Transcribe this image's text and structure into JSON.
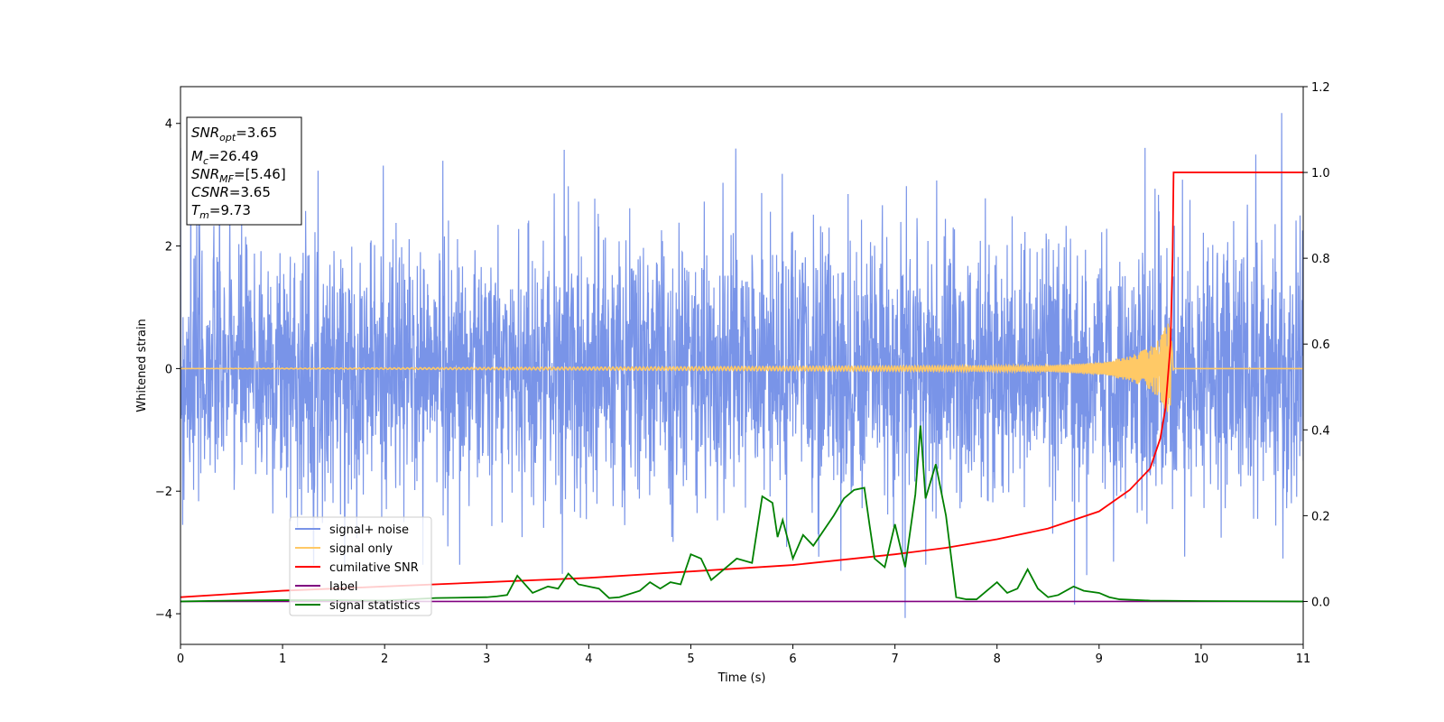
{
  "chart_data": {
    "type": "line",
    "title": "",
    "xlabel": "Time (s)",
    "ylabel": "Whitened strain",
    "xlim": [
      0,
      11
    ],
    "ylim": [
      -4.5,
      4.6
    ],
    "y2lim": [
      -0.1,
      1.2
    ],
    "x_ticks": [
      "0",
      "1",
      "2",
      "3",
      "4",
      "5",
      "6",
      "7",
      "8",
      "9",
      "10",
      "11"
    ],
    "y_ticks": [
      "−4",
      "−2",
      "0",
      "2",
      "4"
    ],
    "y2_ticks": [
      "0.0",
      "0.2",
      "0.4",
      "0.6",
      "0.8",
      "1.0",
      "1.2"
    ],
    "grid": false,
    "legend_position": "lower-left",
    "annotation": {
      "lines": [
        {
          "sym": "SNR",
          "sub": "opt",
          "text": "=3.65"
        },
        {
          "sym": "M",
          "sub": "c",
          "text": "=26.49"
        },
        {
          "sym": "SNR",
          "sub": "MF",
          "text": "=[5.46]"
        },
        {
          "sym": "CSNR",
          "sub": "",
          "text": "=3.65"
        },
        {
          "sym": "T",
          "sub": "m",
          "text": "=9.73"
        }
      ]
    },
    "series": [
      {
        "name": "signal+ noise",
        "axis": "left",
        "color": "#7994e8",
        "style": "noise band approximately ±2.5 with spikes up to about ±4",
        "peaks_high": [
          [
            0.1,
            4.1
          ],
          [
            2.57,
            3.39
          ],
          [
            3.76,
            3.57
          ],
          [
            5.44,
            3.59
          ],
          [
            9.45,
            3.6
          ],
          [
            10.79,
            4.17
          ]
        ],
        "peaks_low": [
          [
            0.02,
            -2.55
          ],
          [
            2.62,
            -2.9
          ],
          [
            3.74,
            -3.35
          ],
          [
            6.47,
            -3.3
          ],
          [
            7.1,
            -4.07
          ],
          [
            8.76,
            -3.85
          ],
          [
            8.88,
            -3.37
          ],
          [
            10.8,
            -3.1
          ]
        ]
      },
      {
        "name": "signal only",
        "axis": "left",
        "color": "#ffc966",
        "style": "chirp, amplitude grows toward merger at t=9.73",
        "merger_time": 9.73,
        "points": [
          [
            0,
            0
          ],
          [
            8.5,
            0.05
          ],
          [
            9.0,
            0.1
          ],
          [
            9.3,
            0.2
          ],
          [
            9.5,
            0.35
          ],
          [
            9.6,
            0.5
          ],
          [
            9.68,
            0.8
          ],
          [
            9.71,
            0.45
          ],
          [
            9.73,
            0
          ]
        ]
      },
      {
        "name": "cumilative SNR",
        "axis": "right",
        "color": "#ff0000",
        "points": [
          [
            0,
            0.01
          ],
          [
            1,
            0.025
          ],
          [
            2,
            0.035
          ],
          [
            3,
            0.045
          ],
          [
            4,
            0.055
          ],
          [
            5,
            0.07
          ],
          [
            6,
            0.085
          ],
          [
            7,
            0.11
          ],
          [
            7.5,
            0.125
          ],
          [
            8,
            0.145
          ],
          [
            8.5,
            0.17
          ],
          [
            9,
            0.21
          ],
          [
            9.3,
            0.26
          ],
          [
            9.5,
            0.31
          ],
          [
            9.6,
            0.38
          ],
          [
            9.65,
            0.45
          ],
          [
            9.7,
            0.6
          ],
          [
            9.72,
            0.8
          ],
          [
            9.73,
            1.0
          ],
          [
            11,
            1.0
          ]
        ]
      },
      {
        "name": "label",
        "axis": "right",
        "color": "#800080",
        "points": [
          [
            0,
            0
          ],
          [
            11,
            0
          ]
        ]
      },
      {
        "name": "signal statistics",
        "axis": "right",
        "color": "#008000",
        "points": [
          [
            0,
            0.0
          ],
          [
            0.5,
            0.002
          ],
          [
            1,
            0.003
          ],
          [
            1.5,
            0.003
          ],
          [
            2,
            0.002
          ],
          [
            2.5,
            0.008
          ],
          [
            3,
            0.01
          ],
          [
            3.1,
            0.012
          ],
          [
            3.2,
            0.015
          ],
          [
            3.3,
            0.06
          ],
          [
            3.45,
            0.02
          ],
          [
            3.6,
            0.035
          ],
          [
            3.7,
            0.03
          ],
          [
            3.8,
            0.065
          ],
          [
            3.9,
            0.04
          ],
          [
            4,
            0.035
          ],
          [
            4.1,
            0.03
          ],
          [
            4.2,
            0.008
          ],
          [
            4.3,
            0.01
          ],
          [
            4.5,
            0.025
          ],
          [
            4.6,
            0.045
          ],
          [
            4.7,
            0.03
          ],
          [
            4.8,
            0.045
          ],
          [
            4.9,
            0.04
          ],
          [
            5,
            0.11
          ],
          [
            5.1,
            0.1
          ],
          [
            5.2,
            0.05
          ],
          [
            5.3,
            0.07
          ],
          [
            5.45,
            0.1
          ],
          [
            5.6,
            0.09
          ],
          [
            5.7,
            0.245
          ],
          [
            5.8,
            0.23
          ],
          [
            5.85,
            0.15
          ],
          [
            5.9,
            0.19
          ],
          [
            6,
            0.1
          ],
          [
            6.1,
            0.155
          ],
          [
            6.2,
            0.13
          ],
          [
            6.4,
            0.2
          ],
          [
            6.5,
            0.24
          ],
          [
            6.6,
            0.26
          ],
          [
            6.7,
            0.265
          ],
          [
            6.75,
            0.18
          ],
          [
            6.8,
            0.1
          ],
          [
            6.9,
            0.08
          ],
          [
            7,
            0.18
          ],
          [
            7.1,
            0.08
          ],
          [
            7.2,
            0.25
          ],
          [
            7.25,
            0.41
          ],
          [
            7.3,
            0.24
          ],
          [
            7.4,
            0.32
          ],
          [
            7.5,
            0.2
          ],
          [
            7.6,
            0.01
          ],
          [
            7.7,
            0.005
          ],
          [
            7.8,
            0.005
          ],
          [
            8,
            0.045
          ],
          [
            8.1,
            0.02
          ],
          [
            8.2,
            0.03
          ],
          [
            8.3,
            0.075
          ],
          [
            8.4,
            0.03
          ],
          [
            8.5,
            0.01
          ],
          [
            8.6,
            0.015
          ],
          [
            8.75,
            0.035
          ],
          [
            8.85,
            0.025
          ],
          [
            9,
            0.02
          ],
          [
            9.1,
            0.01
          ],
          [
            9.2,
            0.005
          ],
          [
            9.5,
            0.002
          ],
          [
            10,
            0.001
          ],
          [
            11,
            0
          ]
        ]
      }
    ]
  }
}
